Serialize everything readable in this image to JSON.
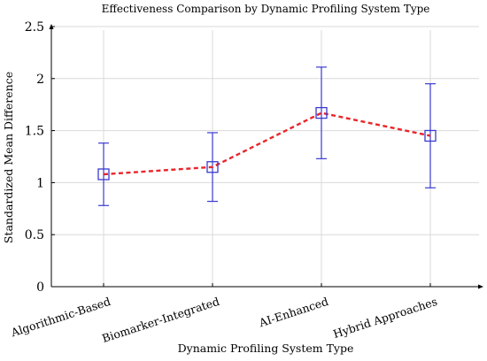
{
  "chart_data": {
    "type": "line",
    "title": "Effectiveness Comparison by Dynamic Profiling System Type",
    "xlabel": "Dynamic Profiling System Type",
    "ylabel": "Standardized Mean Difference",
    "categories": [
      "Algorithmic-Based",
      "Biomarker-Integrated",
      "AI-Enhanced",
      "Hybrid Approaches"
    ],
    "series": [
      {
        "values": [
          1.08,
          1.15,
          1.67,
          1.45
        ],
        "error_low": [
          0.78,
          0.82,
          1.23,
          0.95
        ],
        "error_high": [
          1.38,
          1.48,
          2.11,
          1.95
        ]
      }
    ],
    "ylim": [
      0,
      2.5
    ],
    "yticks": [
      "0",
      "0.5",
      "1",
      "1.5",
      "2",
      "2.5"
    ],
    "grid": true,
    "line_color": "#e8262b",
    "line_style": "dashed",
    "marker": "square",
    "marker_color": "#3a3ad0",
    "error_bar_color": "#3a3ad0"
  }
}
